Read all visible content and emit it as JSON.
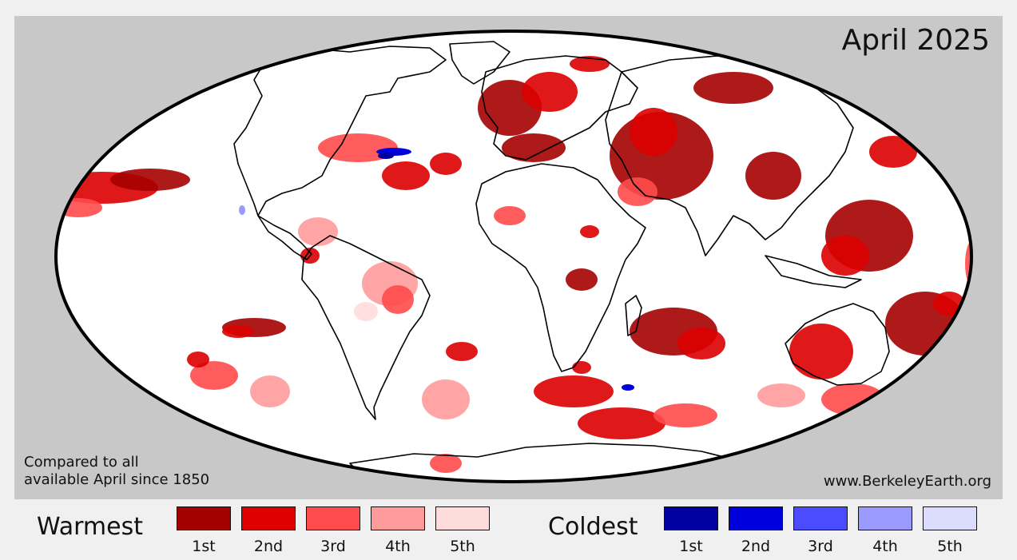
{
  "title": "April 2025",
  "caption_lines": [
    "Compared to all",
    "available April since 1850"
  ],
  "source": "www.BerkeleyEarth.org",
  "legend": {
    "warm": {
      "title": "Warmest",
      "items": [
        {
          "label": "1st",
          "color": "#a50000"
        },
        {
          "label": "2nd",
          "color": "#dc0000"
        },
        {
          "label": "3rd",
          "color": "#ff4b4b"
        },
        {
          "label": "4th",
          "color": "#ff9b9b"
        },
        {
          "label": "5th",
          "color": "#ffdcdc"
        }
      ]
    },
    "cold": {
      "title": "Coldest",
      "items": [
        {
          "label": "1st",
          "color": "#0000a0"
        },
        {
          "label": "2nd",
          "color": "#0000dc"
        },
        {
          "label": "3rd",
          "color": "#4b4bff"
        },
        {
          "label": "4th",
          "color": "#9b9bff"
        },
        {
          "label": "5th",
          "color": "#dcdcff"
        }
      ]
    }
  },
  "map": {
    "projection": "mollweide",
    "ocean_color": "#ffffff",
    "frame_color": "#c8c8c8"
  }
}
